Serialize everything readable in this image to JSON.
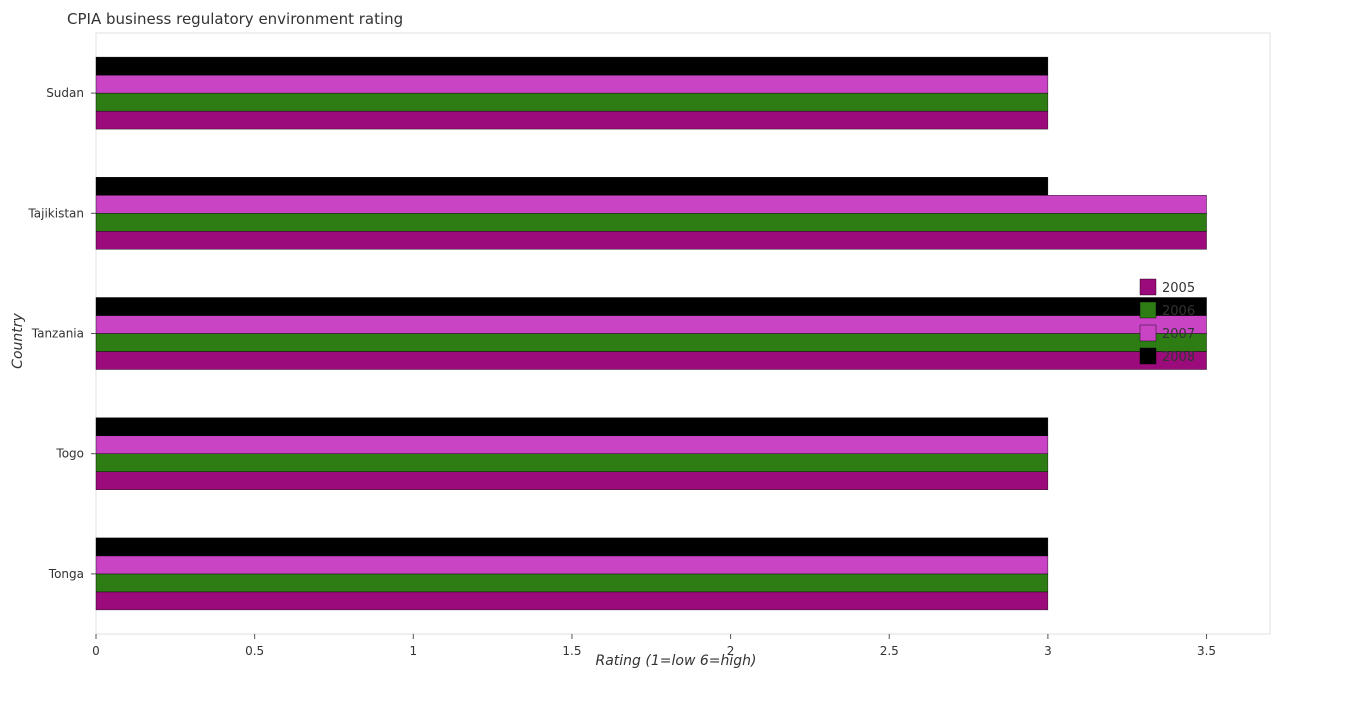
{
  "chart_data": {
    "type": "bar",
    "orientation": "horizontal",
    "title": "CPIA business regulatory environment rating",
    "xlabel": "Rating (1=low 6=high)",
    "ylabel": "Country",
    "categories": [
      "Sudan",
      "Tajikistan",
      "Tanzania",
      "Togo",
      "Tonga"
    ],
    "series": [
      {
        "name": "2005",
        "color": "#9b0b7b",
        "values": [
          3.0,
          3.5,
          3.5,
          3.0,
          3.0
        ]
      },
      {
        "name": "2006",
        "color": "#2e7d14",
        "values": [
          3.0,
          3.5,
          3.5,
          3.0,
          3.0
        ]
      },
      {
        "name": "2007",
        "color": "#c844c4",
        "values": [
          3.0,
          3.5,
          3.5,
          3.0,
          3.0
        ]
      },
      {
        "name": "2008",
        "color": "#000000",
        "values": [
          3.0,
          3.0,
          3.5,
          3.0,
          3.0
        ]
      }
    ],
    "xlim": [
      0,
      3.7
    ],
    "xticks": [
      0,
      0.5,
      1,
      1.5,
      2,
      2.5,
      3,
      3.5
    ],
    "xtick_labels": [
      "0",
      "0.5",
      "1",
      "1.5",
      "2",
      "2.5",
      "3",
      "3.5"
    ],
    "grid": false,
    "legend_position": "right"
  }
}
